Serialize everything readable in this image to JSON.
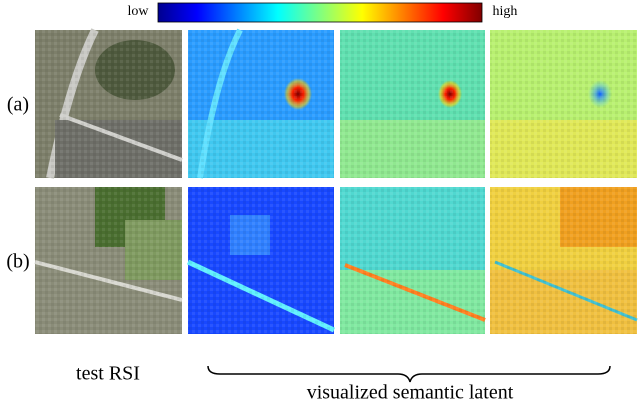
{
  "colorbar": {
    "low_label": "low",
    "high_label": "high"
  },
  "rows": [
    {
      "label": "(a)"
    },
    {
      "label": "(b)"
    }
  ],
  "captions": {
    "input": "test RSI",
    "output": "visualized semantic latent"
  }
}
